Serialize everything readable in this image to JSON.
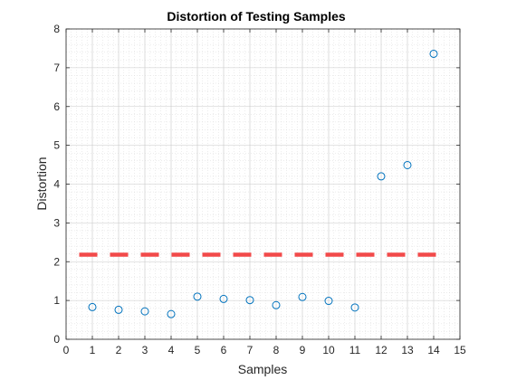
{
  "chart_data": {
    "type": "scatter",
    "title": "Distortion of Testing Samples",
    "xlabel": "Samples",
    "ylabel": "Distortion",
    "xlim": [
      0,
      15
    ],
    "ylim": [
      0,
      8
    ],
    "xticks": [
      0,
      1,
      2,
      3,
      4,
      5,
      6,
      7,
      8,
      9,
      10,
      11,
      12,
      13,
      14,
      15
    ],
    "yticks": [
      0,
      1,
      2,
      3,
      4,
      5,
      6,
      7,
      8
    ],
    "grid": true,
    "minor_grid": true,
    "series": [
      {
        "marker": "circle",
        "color": "#0072BD",
        "x": [
          1,
          2,
          3,
          4,
          5,
          6,
          7,
          8,
          9,
          10,
          11,
          12,
          13,
          14
        ],
        "y": [
          0.83,
          0.76,
          0.72,
          0.65,
          1.1,
          1.04,
          1.01,
          0.88,
          1.09,
          0.99,
          0.82,
          4.2,
          4.49,
          7.36
        ]
      }
    ],
    "threshold": {
      "y": 2.18,
      "x_range": [
        0.5,
        14.5
      ],
      "style": "dashed",
      "color": "#F24A4A"
    }
  }
}
